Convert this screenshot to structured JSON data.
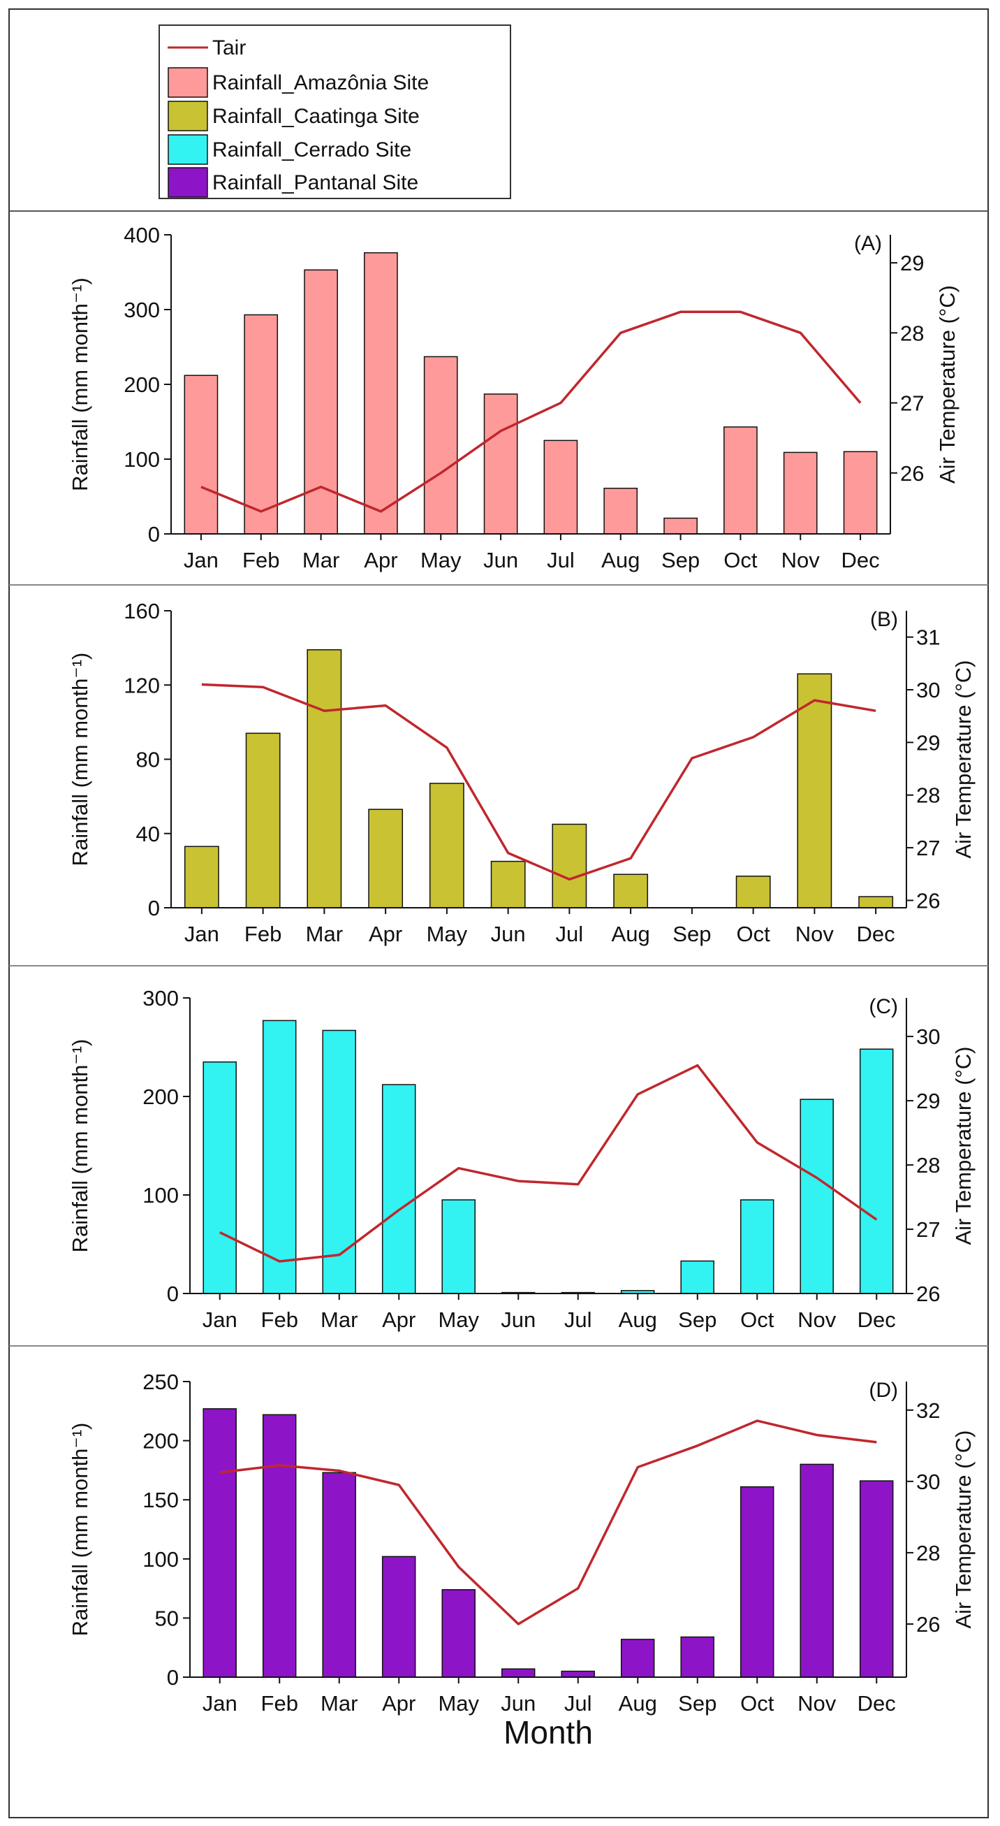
{
  "months": [
    "Jan",
    "Feb",
    "Mar",
    "Apr",
    "May",
    "Jun",
    "Jul",
    "Aug",
    "Sep",
    "Oct",
    "Nov",
    "Dec"
  ],
  "legend": {
    "line": {
      "label": "Tair",
      "color": "#c0272d"
    },
    "entries": [
      {
        "label": "Rainfall_Amazônia Site",
        "color": "#ff9a9a"
      },
      {
        "label": "Rainfall_Caatinga Site",
        "color": "#c9c233"
      },
      {
        "label": "Rainfall_Cerrado Site",
        "color": "#33f2f2"
      },
      {
        "label": "Rainfall_Pantanal Site",
        "color": "#8e14c8"
      }
    ]
  },
  "xlabel": "Month",
  "line_color": "#c0272d",
  "chart_data": [
    {
      "type": "bar",
      "panel": "(A)",
      "series_name": "Rainfall_Amazônia Site",
      "categories": [
        "Jan",
        "Feb",
        "Mar",
        "Apr",
        "May",
        "Jun",
        "Jul",
        "Aug",
        "Sep",
        "Oct",
        "Nov",
        "Dec"
      ],
      "values": [
        212,
        293,
        353,
        376,
        237,
        187,
        125,
        61,
        21,
        143,
        109,
        110
      ],
      "bar_color": "#ff9a9a",
      "ylabel": "Rainfall (mm month⁻¹)",
      "ylim": [
        0,
        400
      ],
      "yticks": [
        0,
        100,
        200,
        300,
        400
      ],
      "y2label": "Air Temperature (°C)",
      "y2lim": [
        25.13,
        29.4
      ],
      "y2ticks": [
        26,
        27,
        28,
        29
      ],
      "tair": [
        25.8,
        25.45,
        25.8,
        25.45,
        26.0,
        26.6,
        27.0,
        28.0,
        28.3,
        28.3,
        28.0,
        27.0
      ]
    },
    {
      "type": "bar",
      "panel": "(B)",
      "series_name": "Rainfall_Caatinga Site",
      "categories": [
        "Jan",
        "Feb",
        "Mar",
        "Apr",
        "May",
        "Jun",
        "Jul",
        "Aug",
        "Sep",
        "Oct",
        "Nov",
        "Dec"
      ],
      "values": [
        33,
        94,
        139,
        53,
        67,
        25,
        45,
        18,
        0,
        17,
        126,
        6
      ],
      "bar_color": "#c9c233",
      "ylabel": "Rainfall (mm month⁻¹)",
      "ylim": [
        0,
        160
      ],
      "yticks": [
        0,
        40,
        80,
        120,
        160
      ],
      "y2label": "Air Temperature (°C)",
      "y2lim": [
        25.86,
        31.5
      ],
      "y2ticks": [
        26,
        27,
        28,
        29,
        30,
        31
      ],
      "tair": [
        30.1,
        30.05,
        29.6,
        29.7,
        28.9,
        26.9,
        26.4,
        26.8,
        28.7,
        29.1,
        29.8,
        29.6
      ]
    },
    {
      "type": "bar",
      "panel": "(C)",
      "series_name": "Rainfall_Cerrado Site",
      "categories": [
        "Jan",
        "Feb",
        "Mar",
        "Apr",
        "May",
        "Jun",
        "Jul",
        "Aug",
        "Sep",
        "Oct",
        "Nov",
        "Dec"
      ],
      "values": [
        235,
        277,
        267,
        212,
        95,
        1,
        1,
        3,
        33,
        95,
        197,
        248
      ],
      "bar_color": "#33f2f2",
      "ylabel": "Rainfall (mm month⁻¹)",
      "ylim": [
        0,
        300
      ],
      "yticks": [
        0,
        100,
        200,
        300
      ],
      "y2label": "Air Temperature (°C)",
      "y2lim": [
        26.0,
        30.6
      ],
      "y2ticks": [
        26,
        27,
        28,
        29,
        30
      ],
      "tair": [
        26.95,
        26.5,
        26.6,
        27.3,
        27.95,
        27.75,
        27.7,
        29.1,
        29.55,
        28.35,
        27.8,
        27.15
      ]
    },
    {
      "type": "bar",
      "panel": "(D)",
      "series_name": "Rainfall_Pantanal Site",
      "categories": [
        "Jan",
        "Feb",
        "Mar",
        "Apr",
        "May",
        "Jun",
        "Jul",
        "Aug",
        "Sep",
        "Oct",
        "Nov",
        "Dec"
      ],
      "values": [
        227,
        222,
        173,
        102,
        74,
        7,
        5,
        32,
        34,
        161,
        180,
        166
      ],
      "bar_color": "#8e14c8",
      "ylabel": "Rainfall (mm month⁻¹)",
      "ylim": [
        0,
        250
      ],
      "yticks": [
        0,
        50,
        100,
        150,
        200,
        250
      ],
      "y2label": "Air Temperature (°C)",
      "y2lim": [
        24.51,
        32.8
      ],
      "y2ticks": [
        26,
        28,
        30,
        32
      ],
      "tair": [
        30.25,
        30.45,
        30.3,
        29.9,
        27.6,
        26.0,
        27.0,
        30.4,
        31.0,
        31.7,
        31.3,
        31.1
      ]
    }
  ]
}
